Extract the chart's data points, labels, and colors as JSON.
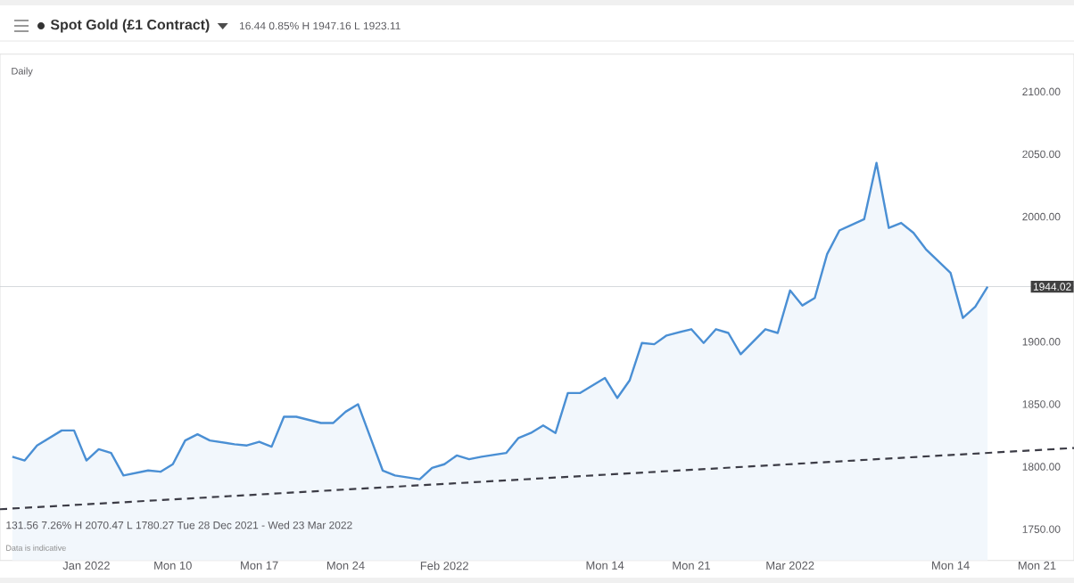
{
  "chart_data": {
    "type": "area",
    "title": "Spot Gold (£1 Contract)",
    "subtitle": "16.44 0.85% H 1947.16 L 1923.11",
    "annotations": [
      "Daily",
      "131.56  7.26%  H 2070.47  L 1780.27  Tue 28 Dec 2021 - Wed 23 Mar 2022",
      "Data is indicative"
    ],
    "xlim": [
      "2021-12-27",
      "2022-03-24"
    ],
    "xticks": [
      {
        "value": "2022-01-03",
        "label": "Jan 2022"
      },
      {
        "value": "2022-01-10",
        "label": "Mon 10"
      },
      {
        "value": "2022-01-17",
        "label": "Mon 17"
      },
      {
        "value": "2022-01-24",
        "label": "Mon 24"
      },
      {
        "value": "2022-02-01",
        "label": "Feb 2022"
      },
      {
        "value": "2022-02-14",
        "label": "Mon 14"
      },
      {
        "value": "2022-02-21",
        "label": "Mon 21"
      },
      {
        "value": "2022-03-01",
        "label": "Mar 2022"
      },
      {
        "value": "2022-03-14",
        "label": "Mon 14"
      },
      {
        "value": "2022-03-21",
        "label": "Mon 21"
      }
    ],
    "ylim": [
      1725,
      2130
    ],
    "yticks": [
      {
        "value": 1750,
        "label": "1750.00"
      },
      {
        "value": 1800,
        "label": "1800.00"
      },
      {
        "value": 1850,
        "label": "1850.00"
      },
      {
        "value": 1900,
        "label": "1900.00"
      },
      {
        "value": 2000,
        "label": "2000.00"
      },
      {
        "value": 2050,
        "label": "2050.00"
      },
      {
        "value": 2100,
        "label": "2100.00"
      }
    ],
    "ref_lines": [
      {
        "axis": "y",
        "value": 1944.02,
        "label": "1944.02",
        "color": "#c8ccd2"
      }
    ],
    "series": [
      {
        "color": "#4a8fd4",
        "x": [
          "2021-12-28",
          "2021-12-29",
          "2021-12-30",
          "2022-01-01",
          "2022-01-02",
          "2022-01-03",
          "2022-01-04",
          "2022-01-05",
          "2022-01-06",
          "2022-01-08",
          "2022-01-09",
          "2022-01-10",
          "2022-01-11",
          "2022-01-12",
          "2022-01-13",
          "2022-01-15",
          "2022-01-16",
          "2022-01-17",
          "2022-01-18",
          "2022-01-19",
          "2022-01-20",
          "2022-01-22",
          "2022-01-23",
          "2022-01-24",
          "2022-01-25",
          "2022-01-27",
          "2022-01-28",
          "2022-01-30",
          "2022-01-31",
          "2022-02-01",
          "2022-02-02",
          "2022-02-03",
          "2022-02-04",
          "2022-02-06",
          "2022-02-07",
          "2022-02-08",
          "2022-02-09",
          "2022-02-10",
          "2022-02-11",
          "2022-02-12",
          "2022-02-14",
          "2022-02-15",
          "2022-02-16",
          "2022-02-17",
          "2022-02-18",
          "2022-02-19",
          "2022-02-21",
          "2022-02-22",
          "2022-02-23",
          "2022-02-24",
          "2022-02-25",
          "2022-02-27",
          "2022-02-28",
          "2022-03-01",
          "2022-03-02",
          "2022-03-03",
          "2022-03-04",
          "2022-03-05",
          "2022-03-07",
          "2022-03-08",
          "2022-03-09",
          "2022-03-10",
          "2022-03-11",
          "2022-03-12",
          "2022-03-14",
          "2022-03-15",
          "2022-03-16",
          "2022-03-17"
        ],
        "values": [
          1808,
          1805,
          1817,
          1829,
          1829,
          1805,
          1814,
          1811,
          1793,
          1797,
          1796,
          1802,
          1821,
          1826,
          1821,
          1818,
          1817,
          1820,
          1816,
          1840,
          1840,
          1835,
          1835,
          1844,
          1850,
          1797,
          1793,
          1790,
          1799,
          1802,
          1809,
          1806,
          1808,
          1811,
          1823,
          1827,
          1833,
          1827,
          1859,
          1859,
          1871,
          1855,
          1869,
          1899,
          1898,
          1905,
          1910,
          1899,
          1910,
          1907,
          1890,
          1910,
          1907,
          1941,
          1929,
          1935,
          1970,
          1989,
          1998,
          2043,
          1991,
          1995,
          1987,
          1974,
          1955,
          1919,
          1928,
          1944
        ]
      },
      {
        "type": "line",
        "color": "#3c3c46",
        "line_style": "dashed",
        "x": [
          "2021-12-27",
          "2022-03-24"
        ],
        "values": [
          1766,
          1815
        ]
      }
    ]
  }
}
